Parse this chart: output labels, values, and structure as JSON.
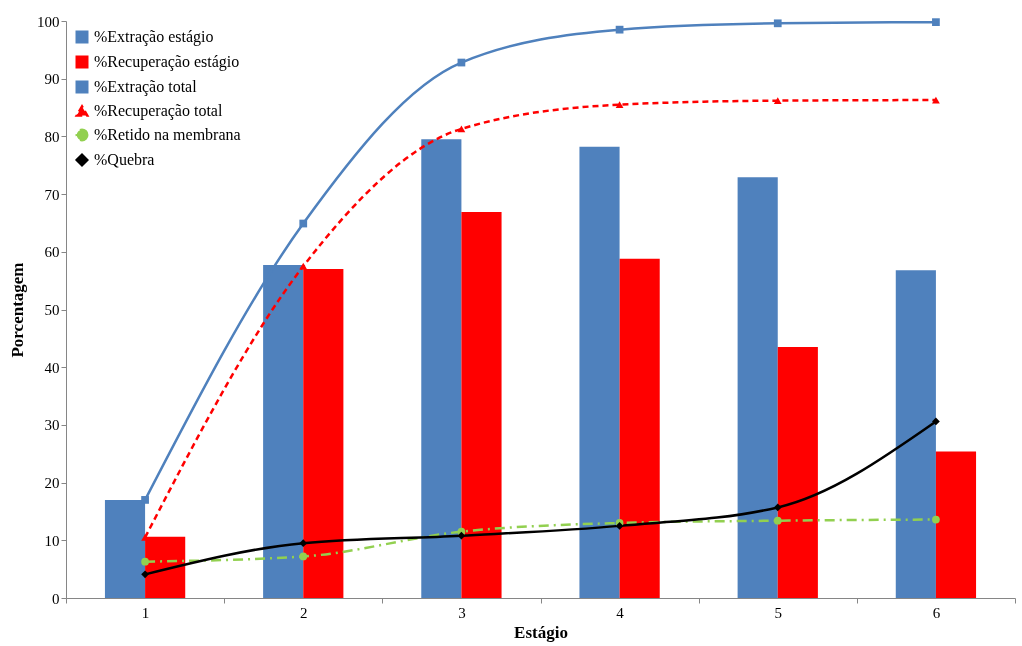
{
  "chart_data": {
    "type": "bar",
    "xlabel": "Estágio",
    "ylabel": "Porcentagem",
    "categories": [
      "1",
      "2",
      "3",
      "4",
      "5",
      "6"
    ],
    "ylim": [
      0,
      100
    ],
    "yticks": [
      0,
      10,
      20,
      30,
      40,
      50,
      60,
      70,
      80,
      90,
      100
    ],
    "grid": false,
    "legend": "top left",
    "series": [
      {
        "name": "%Extração estágio",
        "color": "#4f81bd",
        "values": [
          17,
          57.7,
          79.5,
          78.2,
          72.9,
          56.8
        ]
      },
      {
        "name": "%Recuperação estágio",
        "color": "#ff0000",
        "values": [
          10.6,
          57,
          66.9,
          58.8,
          43.5,
          25.4
        ]
      },
      {
        "name": "%Extração total",
        "type": "line",
        "color": "#4f81bd",
        "marker": "square",
        "line_style": "solid",
        "values": [
          17,
          64.9,
          92.8,
          98.5,
          99.6,
          99.8
        ]
      },
      {
        "name": "%Recuperação total",
        "type": "line",
        "color": "#ff0000",
        "marker": "triangle",
        "line_style": "dashed",
        "values": [
          10.5,
          57.5,
          81.3,
          85.5,
          86.2,
          86.3
        ]
      },
      {
        "name": "%Retido na membrana",
        "type": "line",
        "color": "#92d050",
        "marker": "circle",
        "line_style": "dotted",
        "values": [
          6.3,
          7.2,
          11.5,
          13,
          13.4,
          13.6
        ]
      },
      {
        "name": "%Quebra",
        "type": "line",
        "color": "#000000",
        "marker": "diamond",
        "line_style": "solid",
        "values": [
          4.1,
          9.5,
          10.8,
          12.5,
          15.7,
          30.6
        ]
      }
    ]
  }
}
